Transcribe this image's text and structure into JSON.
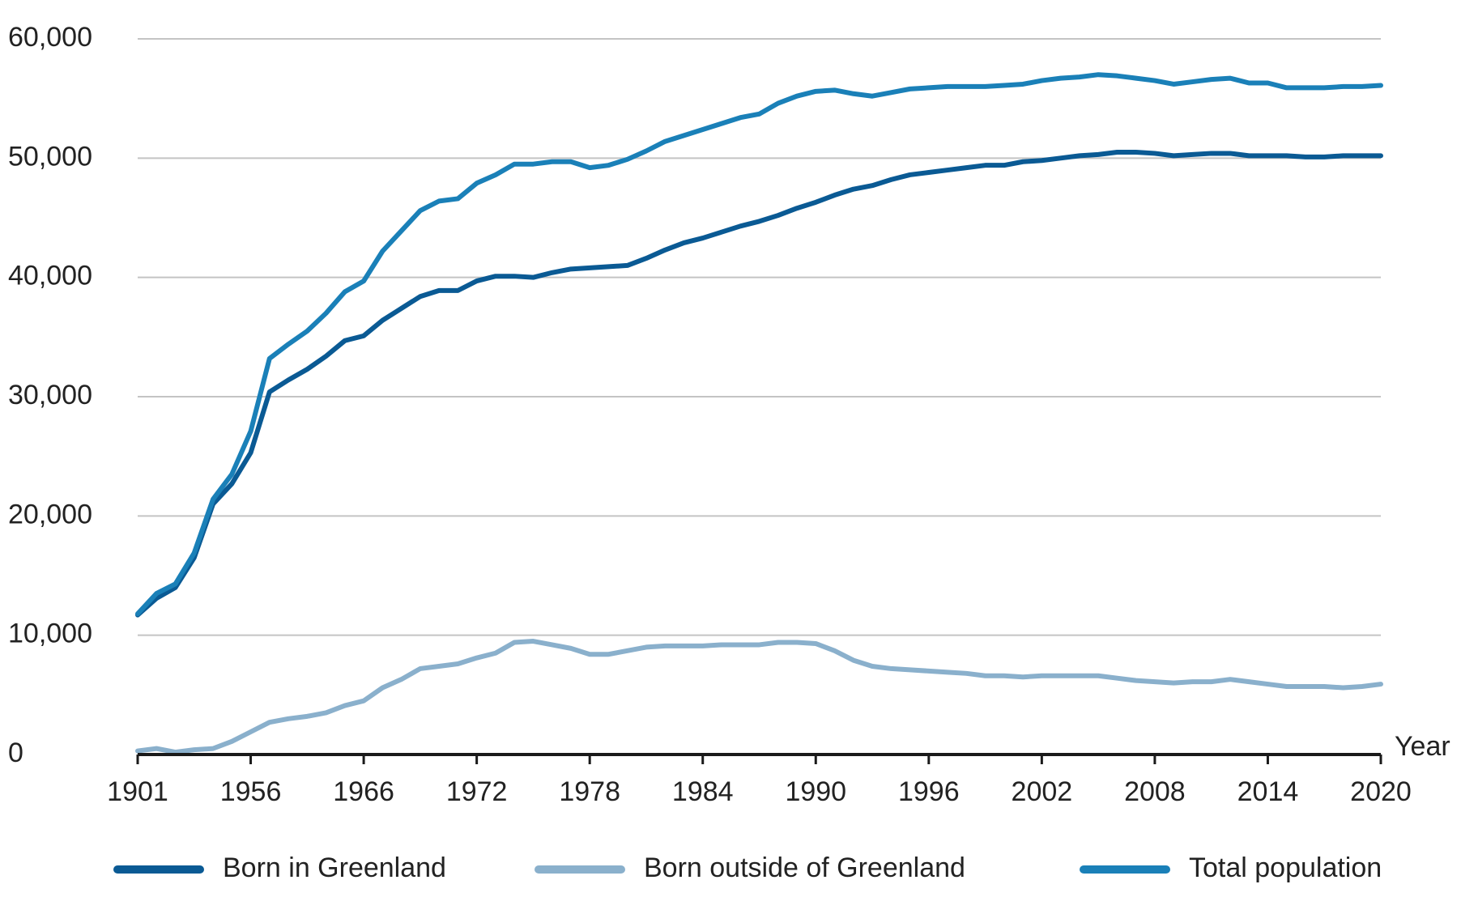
{
  "chart_data": {
    "type": "line",
    "x_label": "Year",
    "categories": [
      "1901",
      null,
      null,
      null,
      null,
      null,
      "1956",
      null,
      null,
      null,
      null,
      null,
      "1966",
      null,
      null,
      null,
      null,
      null,
      "1972",
      null,
      null,
      null,
      null,
      null,
      "1978",
      null,
      null,
      null,
      null,
      null,
      "1984",
      null,
      null,
      null,
      null,
      null,
      "1990",
      null,
      null,
      null,
      null,
      null,
      "1996",
      null,
      null,
      null,
      null,
      null,
      "2002",
      null,
      null,
      null,
      null,
      null,
      "2008",
      null,
      null,
      null,
      null,
      null,
      "2014",
      null,
      null,
      null,
      null,
      null,
      "2020"
    ],
    "series": [
      {
        "name": "Born in Greenland",
        "color": "#0a5a94",
        "values": [
          11700,
          13100,
          14000,
          16500,
          21000,
          22700,
          25300,
          30400,
          31400,
          32300,
          33400,
          34700,
          35100,
          36400,
          37400,
          38400,
          38900,
          38900,
          39700,
          40100,
          40100,
          40000,
          40400,
          40700,
          40800,
          40900,
          41000,
          41600,
          42300,
          42900,
          43300,
          43800,
          44300,
          44700,
          45200,
          45800,
          46300,
          46900,
          47400,
          47700,
          48200,
          48600,
          48800,
          49000,
          49200,
          49400,
          49400,
          49700,
          49800,
          50000,
          50200,
          50300,
          50500,
          50500,
          50400,
          50200,
          50300,
          50400,
          50400,
          50200,
          50200,
          50200,
          50100,
          50100,
          50200,
          50200,
          50200
        ]
      },
      {
        "name": "Born outside of Greenland",
        "color": "#8ab0cc",
        "values": [
          300,
          500,
          200,
          400,
          500,
          1100,
          1900,
          2700,
          3000,
          3200,
          3500,
          4100,
          4500,
          5600,
          6300,
          7200,
          7400,
          7600,
          8100,
          8500,
          9400,
          9500,
          9200,
          8900,
          8400,
          8400,
          8700,
          9000,
          9100,
          9100,
          9100,
          9200,
          9200,
          9200,
          9400,
          9400,
          9300,
          8700,
          7900,
          7400,
          7200,
          7100,
          7000,
          6900,
          6800,
          6600,
          6600,
          6500,
          6600,
          6600,
          6600,
          6600,
          6400,
          6200,
          6100,
          6000,
          6100,
          6100,
          6300,
          6100,
          5900,
          5700,
          5700,
          5700,
          5600,
          5700,
          5900
        ]
      },
      {
        "name": "Total population",
        "color": "#1a80b8",
        "values": [
          11800,
          13500,
          14300,
          16900,
          21400,
          23500,
          27100,
          33200,
          34400,
          35500,
          37000,
          38800,
          39700,
          42200,
          43900,
          45600,
          46400,
          46600,
          47900,
          48600,
          49500,
          49500,
          49700,
          49700,
          49200,
          49400,
          49900,
          50600,
          51400,
          51900,
          52400,
          52900,
          53400,
          53700,
          54600,
          55200,
          55600,
          55700,
          55400,
          55200,
          55500,
          55800,
          55900,
          56000,
          56000,
          56000,
          56100,
          56200,
          56500,
          56700,
          56800,
          57000,
          56900,
          56700,
          56500,
          56200,
          56400,
          56600,
          56700,
          56300,
          56300,
          55900,
          55900,
          55900,
          56000,
          56000,
          56100
        ]
      }
    ],
    "ylim": [
      0,
      60000
    ],
    "yticks": [
      0,
      {
        "value": 10000,
        "label": "10,000"
      },
      {
        "value": 20000,
        "label": "20,000"
      },
      {
        "value": 30000,
        "label": "30,000"
      },
      {
        "value": 40000,
        "label": "40,000"
      },
      {
        "value": 50000,
        "label": "50,000"
      },
      {
        "value": 60000,
        "label": "60,000"
      }
    ],
    "grid": true,
    "legend": "bottom"
  }
}
